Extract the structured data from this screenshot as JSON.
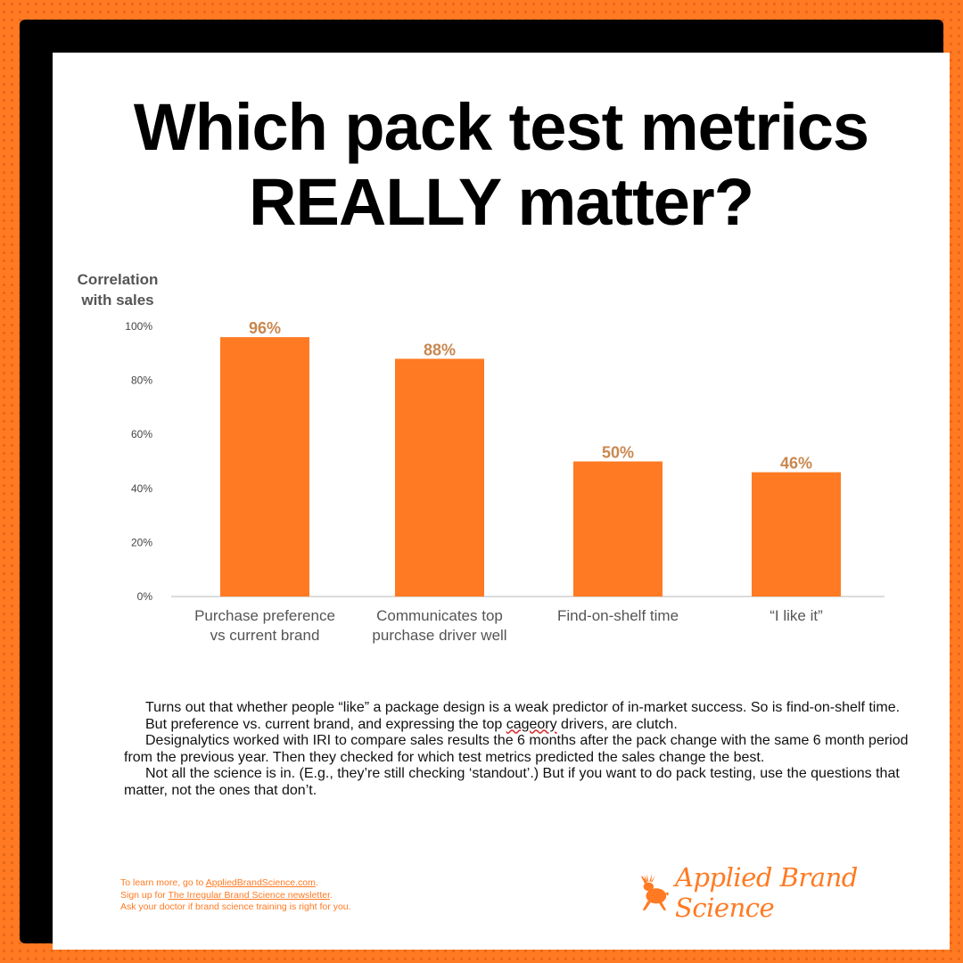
{
  "title_line1": "Which pack test metrics",
  "title_line2": "REALLY matter?",
  "chart_data": {
    "type": "bar",
    "ylabel_line1": "Correlation",
    "ylabel_line2": "with sales",
    "ylim": [
      0,
      100
    ],
    "yticks": [
      "0%",
      "20%",
      "40%",
      "60%",
      "80%",
      "100%"
    ],
    "categories": [
      [
        "Purchase preference",
        "vs current brand"
      ],
      [
        "Communicates top",
        "purchase driver well"
      ],
      [
        "Find-on-shelf time"
      ],
      [
        "“I like it”"
      ]
    ],
    "values": [
      96,
      88,
      50,
      46
    ],
    "data_labels": [
      "96%",
      "88%",
      "50%",
      "46%"
    ],
    "bar_color": "#ff7a22",
    "label_color": "#c9874f",
    "grid": false
  },
  "body": {
    "p1": "Turns out that whether people “like” a package design is a weak predictor of in-market success. So is find-on-shelf time.",
    "p2_before": "But preference vs. current brand, and expressing the top ",
    "p2_squiggle": "cageory",
    "p2_after": " drivers, are clutch.",
    "p3": "Designalytics worked with IRI to compare sales results the 6 months after the pack change with the same 6 month period from the previous year. Then they checked for which test metrics predicted the sales change the best.",
    "p4": "Not all the science is in. (E.g., they’re still checking ‘standout’.) But if you want to do pack testing, use the questions that matter, not the ones that don’t."
  },
  "footer": {
    "line1_prefix": "To learn more, go to ",
    "line1_link": "AppliedBrandScience.com",
    "line1_suffix": ".",
    "line2_prefix": "Sign up for ",
    "line2_link": "The Irregular Brand Science newsletter",
    "line2_suffix": ".",
    "line3": "Ask your doctor if brand science training is right for you."
  },
  "brand": {
    "name": "Applied Brand Science",
    "logo_icon": "jackalope-icon",
    "color": "#ff7a22"
  }
}
